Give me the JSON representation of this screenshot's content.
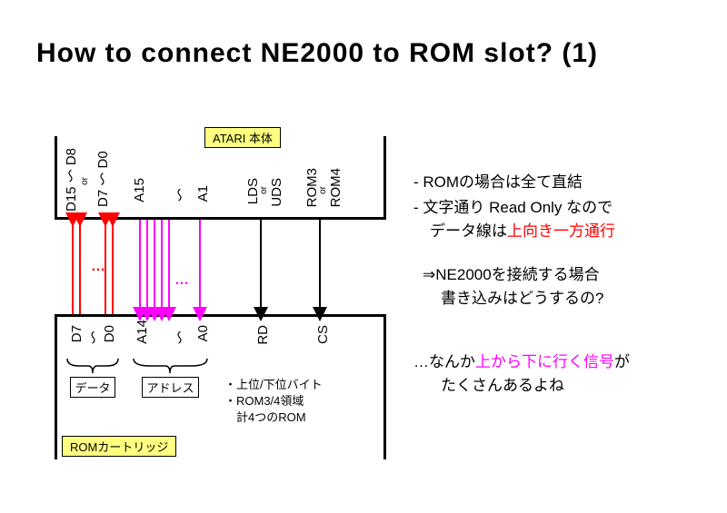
{
  "title": "How to connect NE2000 to ROM slot? (1)",
  "labels": {
    "atari": "ATARI 本体",
    "rom_cart": "ROMカートリッジ",
    "data": "データ",
    "address": "アドレス"
  },
  "top_pins": {
    "d_hi": "D15\n～\nD8",
    "or1": "or",
    "d_lo": "D7\n～\nD0",
    "a_hi": "A15",
    "a_tilde": "～",
    "a_lo": "A1",
    "lds": "LDS",
    "or2": "or",
    "uds": "UDS",
    "rom3": "ROM3",
    "or3": "or",
    "rom4": "ROM4"
  },
  "bot_pins": {
    "d_hi": "D7",
    "d_tilde": "～",
    "d_lo": "D0",
    "a_hi": "A14",
    "a_tilde": "～",
    "a_lo": "A0",
    "rd": "RD",
    "cs": "CS"
  },
  "wire_colors": {
    "data": "#ff0000",
    "addr": "#ff00ff",
    "ctrl": "#000000"
  },
  "dots": "…",
  "note_box": {
    "l1": "・上位/下位バイト",
    "l2": "・ROM3/4領域",
    "l3": "　計4つのROM"
  },
  "side": {
    "b1": "- ROMの場合は全て直結",
    "b2a": "- 文字通り Read Only なので",
    "b2b": "データ線は",
    "b2c": "上向き一方通行",
    "b3a": "⇒NE2000を接続する場合",
    "b3b": "書き込みはどうするの?",
    "b4a": "…なんか",
    "b4b": "上から下に行く信号",
    "b4c": "が",
    "b4d": "たくさんあるよね"
  },
  "geom": {
    "data_x": [
      20,
      28,
      56,
      64
    ],
    "addr_x": [
      94,
      102,
      110,
      118,
      126,
      160
    ],
    "ctrl_x": [
      227,
      292
    ],
    "wire_h": 104
  }
}
